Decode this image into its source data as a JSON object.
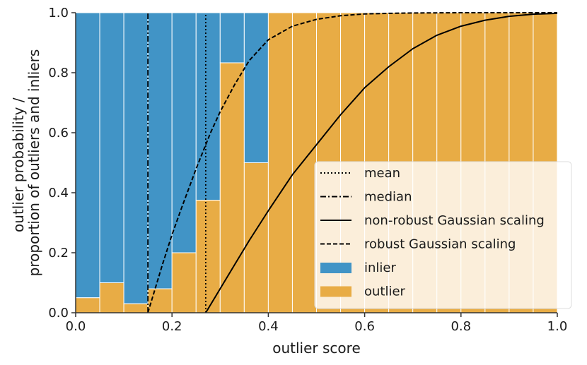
{
  "chart_data": {
    "type": "bar",
    "xlabel": "outlier score",
    "ylabel_lines": [
      "outlier probability /",
      "proportion of outliers and inliers"
    ],
    "xlim": [
      0,
      1
    ],
    "ylim": [
      0,
      1
    ],
    "xticks": [
      0.0,
      0.2,
      0.4,
      0.6,
      0.8,
      1.0
    ],
    "xtick_labels": [
      "0.0",
      "0.2",
      "0.4",
      "0.6",
      "0.8",
      "1.0"
    ],
    "yticks": [
      0.0,
      0.2,
      0.4,
      0.6,
      0.8,
      1.0
    ],
    "ytick_labels": [
      "0.0",
      "0.2",
      "0.4",
      "0.6",
      "0.8",
      "1.0"
    ],
    "grid": false,
    "legend_position": "lower-right",
    "bin_width": 0.05,
    "bin_starts": [
      0.0,
      0.05,
      0.1,
      0.15,
      0.2,
      0.25,
      0.3,
      0.35,
      0.4,
      0.45,
      0.5,
      0.55,
      0.6,
      0.65,
      0.7,
      0.75,
      0.8,
      0.85,
      0.9,
      0.95
    ],
    "outlier_fraction": [
      0.05,
      0.1,
      0.03,
      0.08,
      0.2,
      0.375,
      0.833,
      0.5,
      1.0,
      1.0,
      1.0,
      1.0,
      1.0,
      1.0,
      1.0,
      1.0,
      1.0,
      1.0,
      1.0,
      1.0
    ],
    "vlines": [
      {
        "name": "mean",
        "x": 0.27,
        "style": "dotted"
      },
      {
        "name": "median",
        "x": 0.15,
        "style": "dashdot"
      }
    ],
    "curves": [
      {
        "name": "non-robust Gaussian scaling",
        "style": "solid",
        "x": [
          0.27,
          0.3,
          0.33,
          0.36,
          0.4,
          0.45,
          0.5,
          0.55,
          0.6,
          0.65,
          0.7,
          0.75,
          0.8,
          0.85,
          0.9,
          0.95,
          1.0
        ],
        "y": [
          0.0,
          0.08,
          0.16,
          0.24,
          0.34,
          0.46,
          0.56,
          0.66,
          0.75,
          0.82,
          0.88,
          0.925,
          0.955,
          0.975,
          0.988,
          0.995,
          0.998
        ]
      },
      {
        "name": "robust Gaussian scaling",
        "style": "dashed",
        "x": [
          0.15,
          0.18,
          0.2,
          0.22,
          0.25,
          0.28,
          0.3,
          0.33,
          0.36,
          0.4,
          0.45,
          0.5,
          0.55,
          0.6,
          0.65,
          0.7,
          0.8,
          0.9,
          1.0
        ],
        "y": [
          0.0,
          0.16,
          0.26,
          0.35,
          0.48,
          0.6,
          0.67,
          0.76,
          0.84,
          0.91,
          0.955,
          0.978,
          0.99,
          0.996,
          0.998,
          0.999,
          1.0,
          1.0,
          1.0
        ]
      }
    ],
    "legend": [
      "mean",
      "median",
      "non-robust Gaussian scaling",
      "robust Gaussian scaling",
      "inlier",
      "outlier"
    ],
    "colors": {
      "inlier": "#4194c6",
      "outlier": "#e8ac45",
      "line": "#000000",
      "axis": "#333333",
      "bar_edge": "#ffffff"
    }
  }
}
